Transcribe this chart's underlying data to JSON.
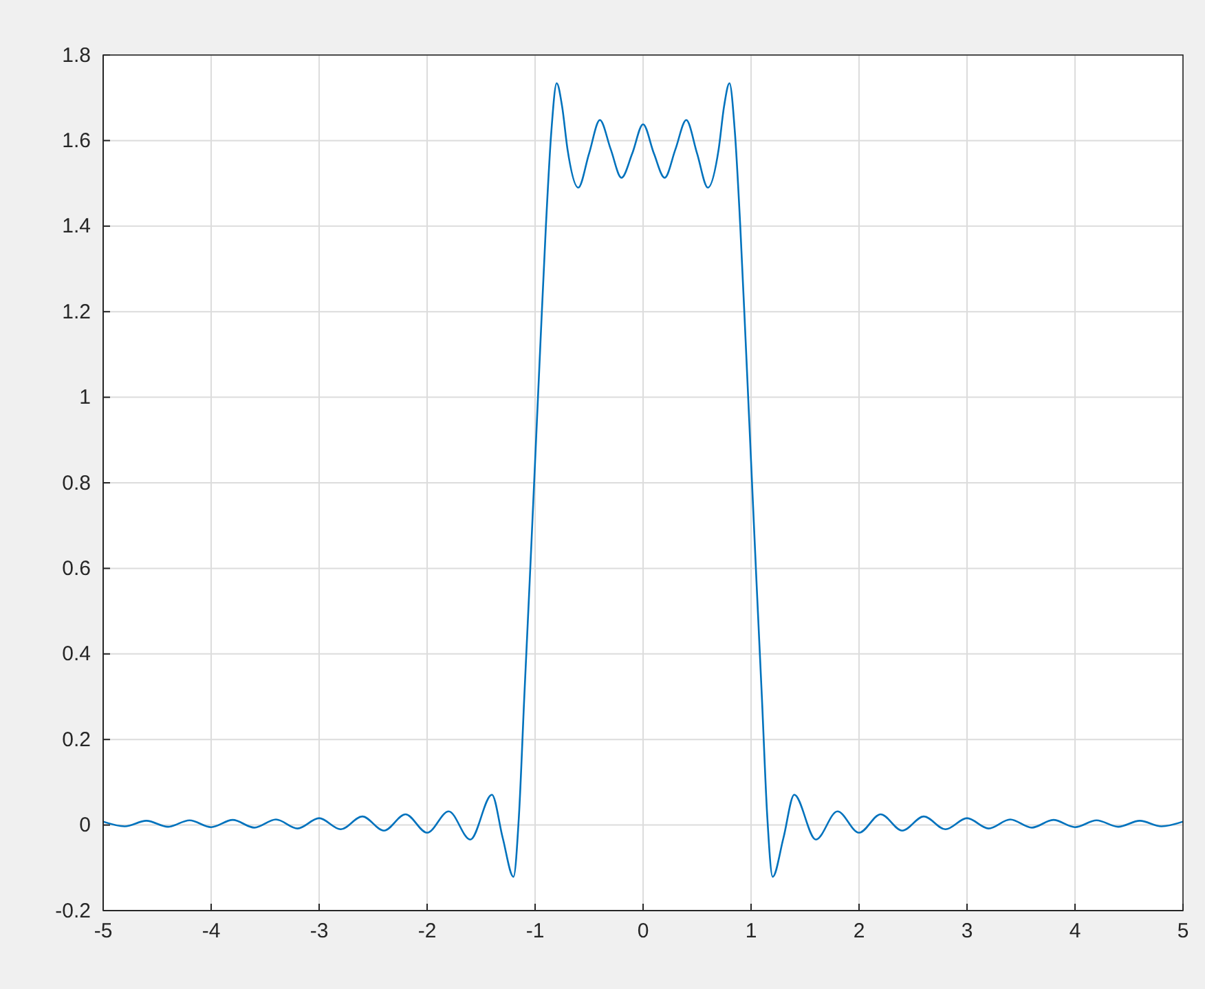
{
  "chart_data": {
    "type": "line",
    "x": [
      -5,
      -4.8,
      -4.6,
      -4.4,
      -4.2,
      -4,
      -3.8,
      -3.6,
      -3.4,
      -3.2,
      -3,
      -2.8,
      -2.6,
      -2.4,
      -2.2,
      -2,
      -1.8,
      -1.6,
      -1.4,
      -1.3,
      -1.2,
      -1.15,
      -1.1,
      -1.05,
      -1,
      -0.95,
      -0.9,
      -0.85,
      -0.8,
      -0.75,
      -0.7,
      -0.6,
      -0.5,
      -0.4,
      -0.3,
      -0.2,
      -0.1,
      0,
      0.1,
      0.2,
      0.3,
      0.4,
      0.5,
      0.6,
      0.7,
      0.75,
      0.8,
      0.85,
      0.9,
      0.95,
      1,
      1.05,
      1.1,
      1.15,
      1.2,
      1.3,
      1.4,
      1.6,
      1.8,
      2,
      2.2,
      2.4,
      2.6,
      2.8,
      3,
      3.2,
      3.4,
      3.6,
      3.8,
      4,
      4.2,
      4.4,
      4.6,
      4.8,
      5
    ],
    "series": [
      {
        "color": "#0072bd",
        "values": [
          0.008,
          -0.003,
          0.01,
          -0.004,
          0.011,
          -0.005,
          0.012,
          -0.006,
          0.013,
          -0.008,
          0.016,
          -0.01,
          0.02,
          -0.013,
          0.025,
          -0.018,
          0.032,
          -0.034,
          0.071,
          -0.03,
          -0.121,
          0.02,
          0.3,
          0.57,
          0.85,
          1.13,
          1.4,
          1.62,
          1.734,
          1.68,
          1.58,
          1.49,
          1.57,
          1.648,
          1.58,
          1.513,
          1.57,
          1.638,
          1.57,
          1.513,
          1.58,
          1.648,
          1.57,
          1.49,
          1.58,
          1.68,
          1.734,
          1.62,
          1.4,
          1.13,
          0.85,
          0.57,
          0.3,
          0.02,
          -0.121,
          -0.03,
          0.071,
          -0.034,
          0.032,
          -0.018,
          0.025,
          -0.013,
          0.02,
          -0.01,
          0.016,
          -0.008,
          0.013,
          -0.006,
          0.012,
          -0.005,
          0.011,
          -0.004,
          0.01,
          -0.003,
          0.008
        ]
      }
    ],
    "xlim": [
      -5,
      5
    ],
    "xticks": [
      -5,
      -4,
      -3,
      -2,
      -1,
      0,
      1,
      2,
      3,
      4,
      5
    ],
    "ylim": [
      -0.2,
      1.8
    ],
    "yticks": [
      -0.2,
      0,
      0.2,
      0.4,
      0.6,
      0.8,
      1,
      1.2,
      1.4,
      1.6,
      1.8
    ],
    "grid": true,
    "line_style": "solid"
  }
}
